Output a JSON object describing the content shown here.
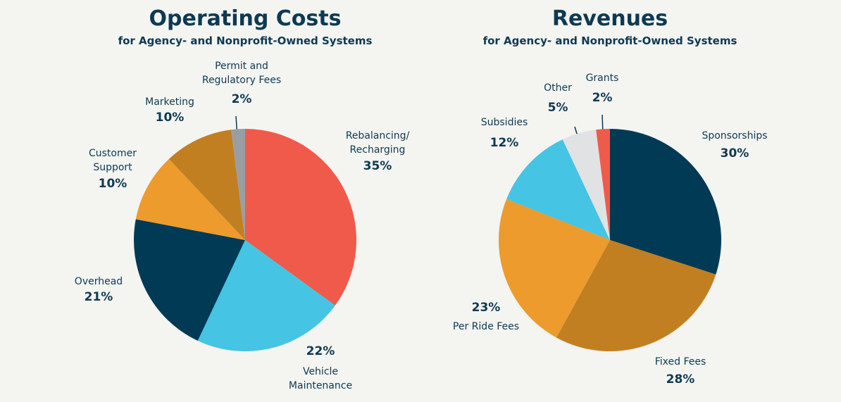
{
  "chart_data": [
    {
      "type": "pie",
      "title": "Operating Costs",
      "subtitle": "for Agency- and Nonprofit-Owned Systems",
      "categories": [
        "Rebalancing/\nRecharging",
        "Vehicle\nMaintenance",
        "Overhead",
        "Customer\nSupport",
        "Marketing",
        "Permit and\nRegulatory Fees"
      ],
      "values": [
        35,
        22,
        21,
        10,
        10,
        2
      ],
      "value_labels": [
        "35%",
        "22%",
        "21%",
        "10%",
        "10%",
        "2%"
      ],
      "colors": [
        "#f05a4a",
        "#45c4e3",
        "#003a55",
        "#ec9b2c",
        "#c27f22",
        "#9a9ea3"
      ]
    },
    {
      "type": "pie",
      "title": "Revenues",
      "subtitle": "for Agency- and Nonprofit-Owned Systems",
      "categories": [
        "Sponsorships",
        "Fixed Fees",
        "Per Ride Fees",
        "Subsidies",
        "Other",
        "Grants"
      ],
      "values": [
        30,
        28,
        23,
        12,
        5,
        2
      ],
      "value_labels": [
        "30%",
        "28%",
        "23%",
        "12%",
        "5%",
        "2%"
      ],
      "colors": [
        "#003a55",
        "#c27f22",
        "#ec9b2c",
        "#45c4e3",
        "#e0e2e4",
        "#f05a4a"
      ]
    }
  ]
}
